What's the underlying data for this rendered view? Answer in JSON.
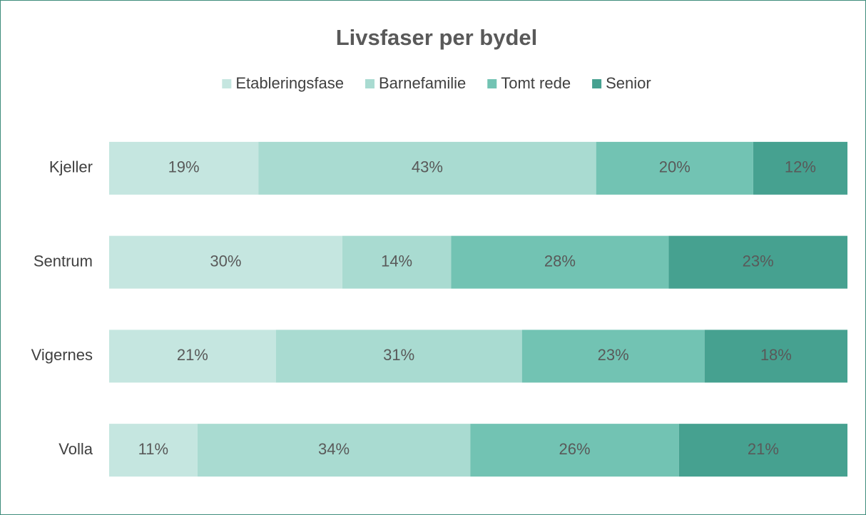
{
  "chart_data": {
    "type": "bar",
    "orientation": "horizontal",
    "stacking": "percent",
    "title": "Livsfaser per bydel",
    "categories": [
      "Kjeller",
      "Sentrum",
      "Vigernes",
      "Volla"
    ],
    "series": [
      {
        "name": "Etableringsfase",
        "color": "#c5e6e0",
        "values": [
          19,
          30,
          21,
          11
        ],
        "value_labels": [
          "19%",
          "30%",
          "21%",
          "11%"
        ]
      },
      {
        "name": "Barnefamilie",
        "color": "#a9dbd1",
        "values": [
          43,
          14,
          31,
          34
        ],
        "value_labels": [
          "43%",
          "14%",
          "31%",
          "34%"
        ]
      },
      {
        "name": "Tomt rede",
        "color": "#72c3b3",
        "values": [
          20,
          28,
          23,
          26
        ],
        "value_labels": [
          "20%",
          "28%",
          "23%",
          "26%"
        ]
      },
      {
        "name": "Senior",
        "color": "#46a190",
        "values": [
          12,
          23,
          18,
          21
        ],
        "value_labels": [
          "12%",
          "23%",
          "18%",
          "21%"
        ]
      }
    ],
    "legend": "top",
    "grid": false
  }
}
